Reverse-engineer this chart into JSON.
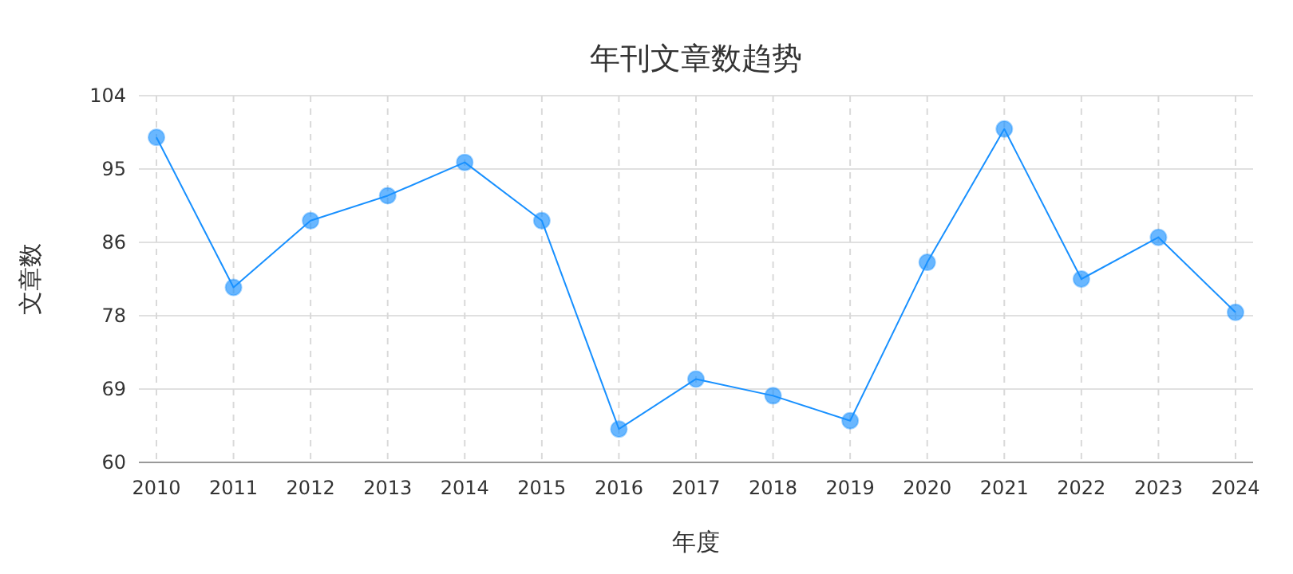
{
  "chart_data": {
    "type": "line",
    "title": "年刊文章数趋势",
    "xlabel": "年度",
    "ylabel": "文章数",
    "categories": [
      "2010",
      "2011",
      "2012",
      "2013",
      "2014",
      "2015",
      "2016",
      "2017",
      "2018",
      "2019",
      "2020",
      "2021",
      "2022",
      "2023",
      "2024"
    ],
    "series": [
      {
        "color": "#1890ff",
        "values": [
          99,
          81,
          89,
          92,
          96,
          89,
          64,
          70,
          68,
          65,
          84,
          100,
          82,
          87,
          78
        ]
      }
    ],
    "ylim": [
      60,
      104
    ],
    "yticks": [
      60,
      {
        "value": 68.8,
        "label": "69"
      },
      {
        "value": 77.6,
        "label": "78"
      },
      {
        "value": 86.4,
        "label": "86"
      },
      {
        "value": 95.2,
        "label": "95"
      },
      104
    ],
    "grid": true,
    "marker": "circle",
    "line_style": "solid"
  }
}
